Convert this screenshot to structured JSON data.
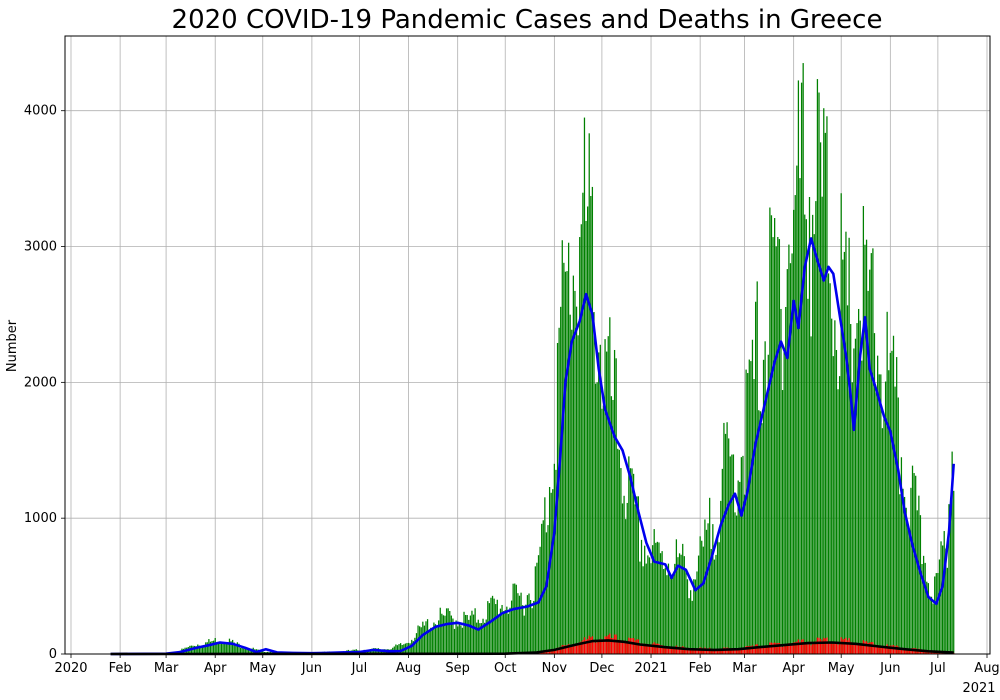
{
  "chart_data": {
    "type": "bar",
    "title": "2020 COVID-19 Pandemic Cases and Deaths in Greece",
    "xlabel": "",
    "ylabel": "Number",
    "ylim": [
      0,
      4550
    ],
    "xlim": [
      "2020-01-01",
      "2021-08-01"
    ],
    "grid": true,
    "legend": "none",
    "yticks": [
      0,
      1000,
      2000,
      3000,
      4000
    ],
    "xticks": [
      {
        "date": "2020-01-01",
        "label": "2020",
        "sub": ""
      },
      {
        "date": "2020-02-01",
        "label": "Feb",
        "sub": ""
      },
      {
        "date": "2020-03-01",
        "label": "Mar",
        "sub": ""
      },
      {
        "date": "2020-04-01",
        "label": "Apr",
        "sub": ""
      },
      {
        "date": "2020-05-01",
        "label": "May",
        "sub": ""
      },
      {
        "date": "2020-06-01",
        "label": "Jun",
        "sub": ""
      },
      {
        "date": "2020-07-01",
        "label": "Jul",
        "sub": ""
      },
      {
        "date": "2020-08-01",
        "label": "Aug",
        "sub": ""
      },
      {
        "date": "2020-09-01",
        "label": "Sep",
        "sub": ""
      },
      {
        "date": "2020-10-01",
        "label": "Oct",
        "sub": ""
      },
      {
        "date": "2020-11-01",
        "label": "Nov",
        "sub": ""
      },
      {
        "date": "2020-12-01",
        "label": "Dec",
        "sub": ""
      },
      {
        "date": "2021-01-01",
        "label": "2021",
        "sub": ""
      },
      {
        "date": "2021-02-01",
        "label": "Feb",
        "sub": ""
      },
      {
        "date": "2021-03-01",
        "label": "Mar",
        "sub": ""
      },
      {
        "date": "2021-04-01",
        "label": "Apr",
        "sub": ""
      },
      {
        "date": "2021-05-01",
        "label": "May",
        "sub": ""
      },
      {
        "date": "2021-06-01",
        "label": "Jun",
        "sub": ""
      },
      {
        "date": "2021-07-01",
        "label": "Jul",
        "sub": ""
      },
      {
        "date": "2021-08-01",
        "label": "Aug",
        "sub": "2021"
      }
    ],
    "series": [
      {
        "kind": "bar",
        "color": "#008000",
        "points": [
          [
            "2020-01-26",
            0
          ],
          [
            "2020-02-26",
            2
          ],
          [
            "2020-03-05",
            10
          ],
          [
            "2020-03-12",
            30
          ],
          [
            "2020-03-19",
            60
          ],
          [
            "2020-03-26",
            70
          ],
          [
            "2020-04-01",
            85
          ],
          [
            "2020-04-08",
            90
          ],
          [
            "2020-04-15",
            60
          ],
          [
            "2020-04-22",
            40
          ],
          [
            "2020-04-29",
            20
          ],
          [
            "2020-05-06",
            15
          ],
          [
            "2020-05-13",
            10
          ],
          [
            "2020-05-20",
            8
          ],
          [
            "2020-05-27",
            6
          ],
          [
            "2020-06-03",
            10
          ],
          [
            "2020-06-10",
            12
          ],
          [
            "2020-06-17",
            15
          ],
          [
            "2020-06-24",
            20
          ],
          [
            "2020-07-01",
            25
          ],
          [
            "2020-07-08",
            30
          ],
          [
            "2020-07-15",
            30
          ],
          [
            "2020-07-22",
            40
          ],
          [
            "2020-07-29",
            60
          ],
          [
            "2020-08-05",
            120
          ],
          [
            "2020-08-12",
            180
          ],
          [
            "2020-08-19",
            220
          ],
          [
            "2020-08-26",
            230
          ],
          [
            "2020-09-02",
            220
          ],
          [
            "2020-09-09",
            210
          ],
          [
            "2020-09-16",
            250
          ],
          [
            "2020-09-23",
            300
          ],
          [
            "2020-09-30",
            320
          ],
          [
            "2020-10-07",
            340
          ],
          [
            "2020-10-14",
            360
          ],
          [
            "2020-10-21",
            480
          ],
          [
            "2020-10-28",
            1000
          ],
          [
            "2020-11-04",
            1900
          ],
          [
            "2020-11-11",
            2400
          ],
          [
            "2020-11-18",
            2700
          ],
          [
            "2020-11-25",
            2500
          ],
          [
            "2020-12-02",
            1800
          ],
          [
            "2020-12-09",
            1500
          ],
          [
            "2020-12-16",
            1100
          ],
          [
            "2020-12-23",
            800
          ],
          [
            "2020-12-30",
            650
          ],
          [
            "2021-01-06",
            600
          ],
          [
            "2021-01-13",
            620
          ],
          [
            "2021-01-20",
            560
          ],
          [
            "2021-01-27",
            470
          ],
          [
            "2021-02-03",
            620
          ],
          [
            "2021-02-10",
            880
          ],
          [
            "2021-02-17",
            1150
          ],
          [
            "2021-02-24",
            1200
          ],
          [
            "2021-03-03",
            1500
          ],
          [
            "2021-03-10",
            1900
          ],
          [
            "2021-03-17",
            2200
          ],
          [
            "2021-03-24",
            2400
          ],
          [
            "2021-03-31",
            2700
          ],
          [
            "2021-04-07",
            3100
          ],
          [
            "2021-04-14",
            2900
          ],
          [
            "2021-04-21",
            2800
          ],
          [
            "2021-04-28",
            2400
          ],
          [
            "2021-05-05",
            2000
          ],
          [
            "2021-05-12",
            2300
          ],
          [
            "2021-05-19",
            2100
          ],
          [
            "2021-05-26",
            1900
          ],
          [
            "2021-06-02",
            1600
          ],
          [
            "2021-06-09",
            1200
          ],
          [
            "2021-06-16",
            900
          ],
          [
            "2021-06-23",
            600
          ],
          [
            "2021-06-30",
            400
          ],
          [
            "2021-07-07",
            800
          ],
          [
            "2021-07-11",
            1500
          ]
        ]
      },
      {
        "kind": "bar",
        "color": "#ff0000",
        "points": [
          [
            "2020-01-26",
            0
          ],
          [
            "2020-10-01",
            2
          ],
          [
            "2020-10-20",
            10
          ],
          [
            "2020-11-01",
            30
          ],
          [
            "2020-11-15",
            70
          ],
          [
            "2020-11-25",
            95
          ],
          [
            "2020-12-05",
            100
          ],
          [
            "2020-12-15",
            90
          ],
          [
            "2020-12-25",
            70
          ],
          [
            "2021-01-10",
            50
          ],
          [
            "2021-01-25",
            35
          ],
          [
            "2021-02-10",
            30
          ],
          [
            "2021-02-25",
            35
          ],
          [
            "2021-03-10",
            50
          ],
          [
            "2021-03-25",
            65
          ],
          [
            "2021-04-10",
            80
          ],
          [
            "2021-04-25",
            85
          ],
          [
            "2021-05-10",
            75
          ],
          [
            "2021-05-25",
            55
          ],
          [
            "2021-06-10",
            35
          ],
          [
            "2021-06-25",
            20
          ],
          [
            "2021-07-11",
            10
          ]
        ]
      },
      {
        "kind": "line",
        "color": "#0000ee",
        "points": [
          [
            "2020-01-26",
            0
          ],
          [
            "2020-03-01",
            2
          ],
          [
            "2020-03-10",
            15
          ],
          [
            "2020-03-20",
            45
          ],
          [
            "2020-03-28",
            65
          ],
          [
            "2020-04-04",
            85
          ],
          [
            "2020-04-12",
            75
          ],
          [
            "2020-04-20",
            45
          ],
          [
            "2020-04-27",
            15
          ],
          [
            "2020-05-03",
            35
          ],
          [
            "2020-05-10",
            12
          ],
          [
            "2020-05-20",
            8
          ],
          [
            "2020-06-01",
            6
          ],
          [
            "2020-06-10",
            8
          ],
          [
            "2020-06-20",
            12
          ],
          [
            "2020-07-01",
            15
          ],
          [
            "2020-07-10",
            30
          ],
          [
            "2020-07-20",
            20
          ],
          [
            "2020-07-27",
            22
          ],
          [
            "2020-08-03",
            60
          ],
          [
            "2020-08-10",
            140
          ],
          [
            "2020-08-18",
            200
          ],
          [
            "2020-08-25",
            220
          ],
          [
            "2020-09-01",
            230
          ],
          [
            "2020-09-08",
            210
          ],
          [
            "2020-09-14",
            180
          ],
          [
            "2020-09-22",
            240
          ],
          [
            "2020-09-29",
            300
          ],
          [
            "2020-10-06",
            330
          ],
          [
            "2020-10-15",
            350
          ],
          [
            "2020-10-22",
            380
          ],
          [
            "2020-10-27",
            500
          ],
          [
            "2020-11-01",
            900
          ],
          [
            "2020-11-05",
            1500
          ],
          [
            "2020-11-08",
            2000
          ],
          [
            "2020-11-12",
            2300
          ],
          [
            "2020-11-17",
            2450
          ],
          [
            "2020-11-21",
            2650
          ],
          [
            "2020-11-25",
            2500
          ],
          [
            "2020-11-29",
            2100
          ],
          [
            "2020-12-03",
            1800
          ],
          [
            "2020-12-09",
            1600
          ],
          [
            "2020-12-14",
            1500
          ],
          [
            "2020-12-19",
            1300
          ],
          [
            "2020-12-24",
            1050
          ],
          [
            "2020-12-29",
            820
          ],
          [
            "2021-01-03",
            680
          ],
          [
            "2021-01-10",
            660
          ],
          [
            "2021-01-14",
            560
          ],
          [
            "2021-01-18",
            650
          ],
          [
            "2021-01-23",
            620
          ],
          [
            "2021-01-29",
            470
          ],
          [
            "2021-02-03",
            520
          ],
          [
            "2021-02-08",
            700
          ],
          [
            "2021-02-14",
            950
          ],
          [
            "2021-02-19",
            1100
          ],
          [
            "2021-02-23",
            1180
          ],
          [
            "2021-02-27",
            1020
          ],
          [
            "2021-03-03",
            1200
          ],
          [
            "2021-03-08",
            1550
          ],
          [
            "2021-03-14",
            1850
          ],
          [
            "2021-03-20",
            2150
          ],
          [
            "2021-03-24",
            2300
          ],
          [
            "2021-03-28",
            2180
          ],
          [
            "2021-04-01",
            2600
          ],
          [
            "2021-04-04",
            2400
          ],
          [
            "2021-04-08",
            2850
          ],
          [
            "2021-04-12",
            3060
          ],
          [
            "2021-04-16",
            2900
          ],
          [
            "2021-04-20",
            2750
          ],
          [
            "2021-04-23",
            2850
          ],
          [
            "2021-04-26",
            2800
          ],
          [
            "2021-04-30",
            2500
          ],
          [
            "2021-05-04",
            2200
          ],
          [
            "2021-05-07",
            1900
          ],
          [
            "2021-05-09",
            1650
          ],
          [
            "2021-05-13",
            2200
          ],
          [
            "2021-05-16",
            2480
          ],
          [
            "2021-05-19",
            2100
          ],
          [
            "2021-05-23",
            1950
          ],
          [
            "2021-05-28",
            1750
          ],
          [
            "2021-06-01",
            1640
          ],
          [
            "2021-06-06",
            1350
          ],
          [
            "2021-06-10",
            1050
          ],
          [
            "2021-06-15",
            800
          ],
          [
            "2021-06-20",
            600
          ],
          [
            "2021-06-25",
            420
          ],
          [
            "2021-06-30",
            370
          ],
          [
            "2021-07-04",
            500
          ],
          [
            "2021-07-08",
            900
          ],
          [
            "2021-07-11",
            1400
          ]
        ]
      },
      {
        "kind": "line",
        "color": "#000000",
        "points": [
          [
            "2020-01-26",
            0
          ],
          [
            "2020-10-01",
            2
          ],
          [
            "2020-10-20",
            10
          ],
          [
            "2020-11-01",
            30
          ],
          [
            "2020-11-15",
            70
          ],
          [
            "2020-11-25",
            95
          ],
          [
            "2020-12-05",
            100
          ],
          [
            "2020-12-15",
            90
          ],
          [
            "2020-12-25",
            70
          ],
          [
            "2021-01-10",
            50
          ],
          [
            "2021-01-25",
            35
          ],
          [
            "2021-02-10",
            30
          ],
          [
            "2021-02-25",
            35
          ],
          [
            "2021-03-10",
            50
          ],
          [
            "2021-03-25",
            65
          ],
          [
            "2021-04-10",
            80
          ],
          [
            "2021-04-25",
            85
          ],
          [
            "2021-05-10",
            75
          ],
          [
            "2021-05-25",
            55
          ],
          [
            "2021-06-10",
            35
          ],
          [
            "2021-06-25",
            20
          ],
          [
            "2021-07-11",
            10
          ]
        ]
      }
    ]
  }
}
